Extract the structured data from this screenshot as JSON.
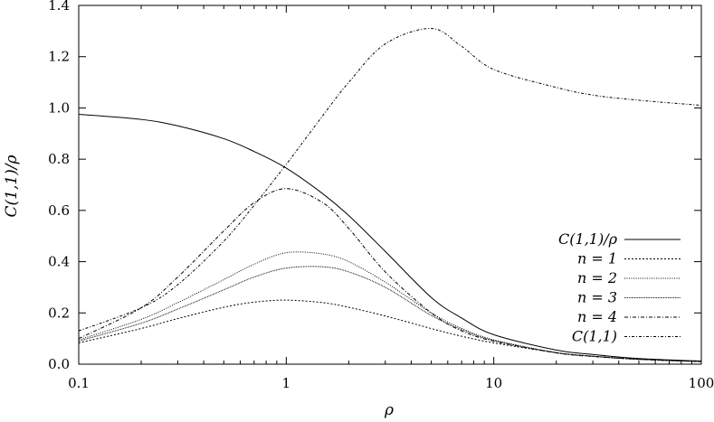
{
  "chart_data": {
    "type": "line",
    "title": "",
    "xlabel": "ρ",
    "ylabel": "C(1,1)/ρ",
    "xscale": "log",
    "xlim": [
      0.1,
      100
    ],
    "ylim": [
      0,
      1.4
    ],
    "grid": false,
    "legend_position": "right-middle",
    "x_ticks": [
      "0.1",
      "1",
      "10",
      "100"
    ],
    "y_ticks": [
      "0.0",
      "0.2",
      "0.4",
      "0.6",
      "0.8",
      "1.0",
      "1.2",
      "1.4"
    ],
    "x": [
      0.1,
      0.2,
      0.3,
      0.5,
      0.7,
      1,
      1.5,
      2,
      3,
      5,
      7,
      10,
      20,
      30,
      50,
      100
    ],
    "series": [
      {
        "name": "C(1,1)/ρ",
        "dash": "",
        "values": [
          0.975,
          0.955,
          0.93,
          0.88,
          0.83,
          0.765,
          0.665,
          0.58,
          0.44,
          0.26,
          0.18,
          0.115,
          0.055,
          0.038,
          0.022,
          0.012
        ]
      },
      {
        "name": "n = 1",
        "dash": "2,2",
        "values": [
          0.083,
          0.139,
          0.178,
          0.222,
          0.242,
          0.25,
          0.24,
          0.222,
          0.188,
          0.139,
          0.109,
          0.083,
          0.045,
          0.031,
          0.019,
          0.01
        ]
      },
      {
        "name": "n = 2",
        "dash": "1,1.5",
        "values": [
          0.095,
          0.175,
          0.24,
          0.33,
          0.39,
          0.435,
          0.43,
          0.4,
          0.32,
          0.2,
          0.14,
          0.095,
          0.045,
          0.031,
          0.019,
          0.01
        ]
      },
      {
        "name": "n = 3",
        "dash": "0.8,0.8",
        "values": [
          0.09,
          0.16,
          0.215,
          0.29,
          0.34,
          0.375,
          0.38,
          0.36,
          0.3,
          0.19,
          0.135,
          0.092,
          0.045,
          0.031,
          0.019,
          0.01
        ]
      },
      {
        "name": "n = 4",
        "dash": "4,2,1,2",
        "values": [
          0.1,
          0.22,
          0.34,
          0.52,
          0.63,
          0.685,
          0.63,
          0.53,
          0.36,
          0.2,
          0.13,
          0.09,
          0.044,
          0.03,
          0.019,
          0.01
        ]
      },
      {
        "name": "C(1,1)",
        "dash": "3,2,1,2",
        "values": [
          0.13,
          0.22,
          0.31,
          0.48,
          0.62,
          0.78,
          0.97,
          1.1,
          1.25,
          1.31,
          1.24,
          1.15,
          1.08,
          1.05,
          1.03,
          1.01
        ]
      }
    ]
  }
}
